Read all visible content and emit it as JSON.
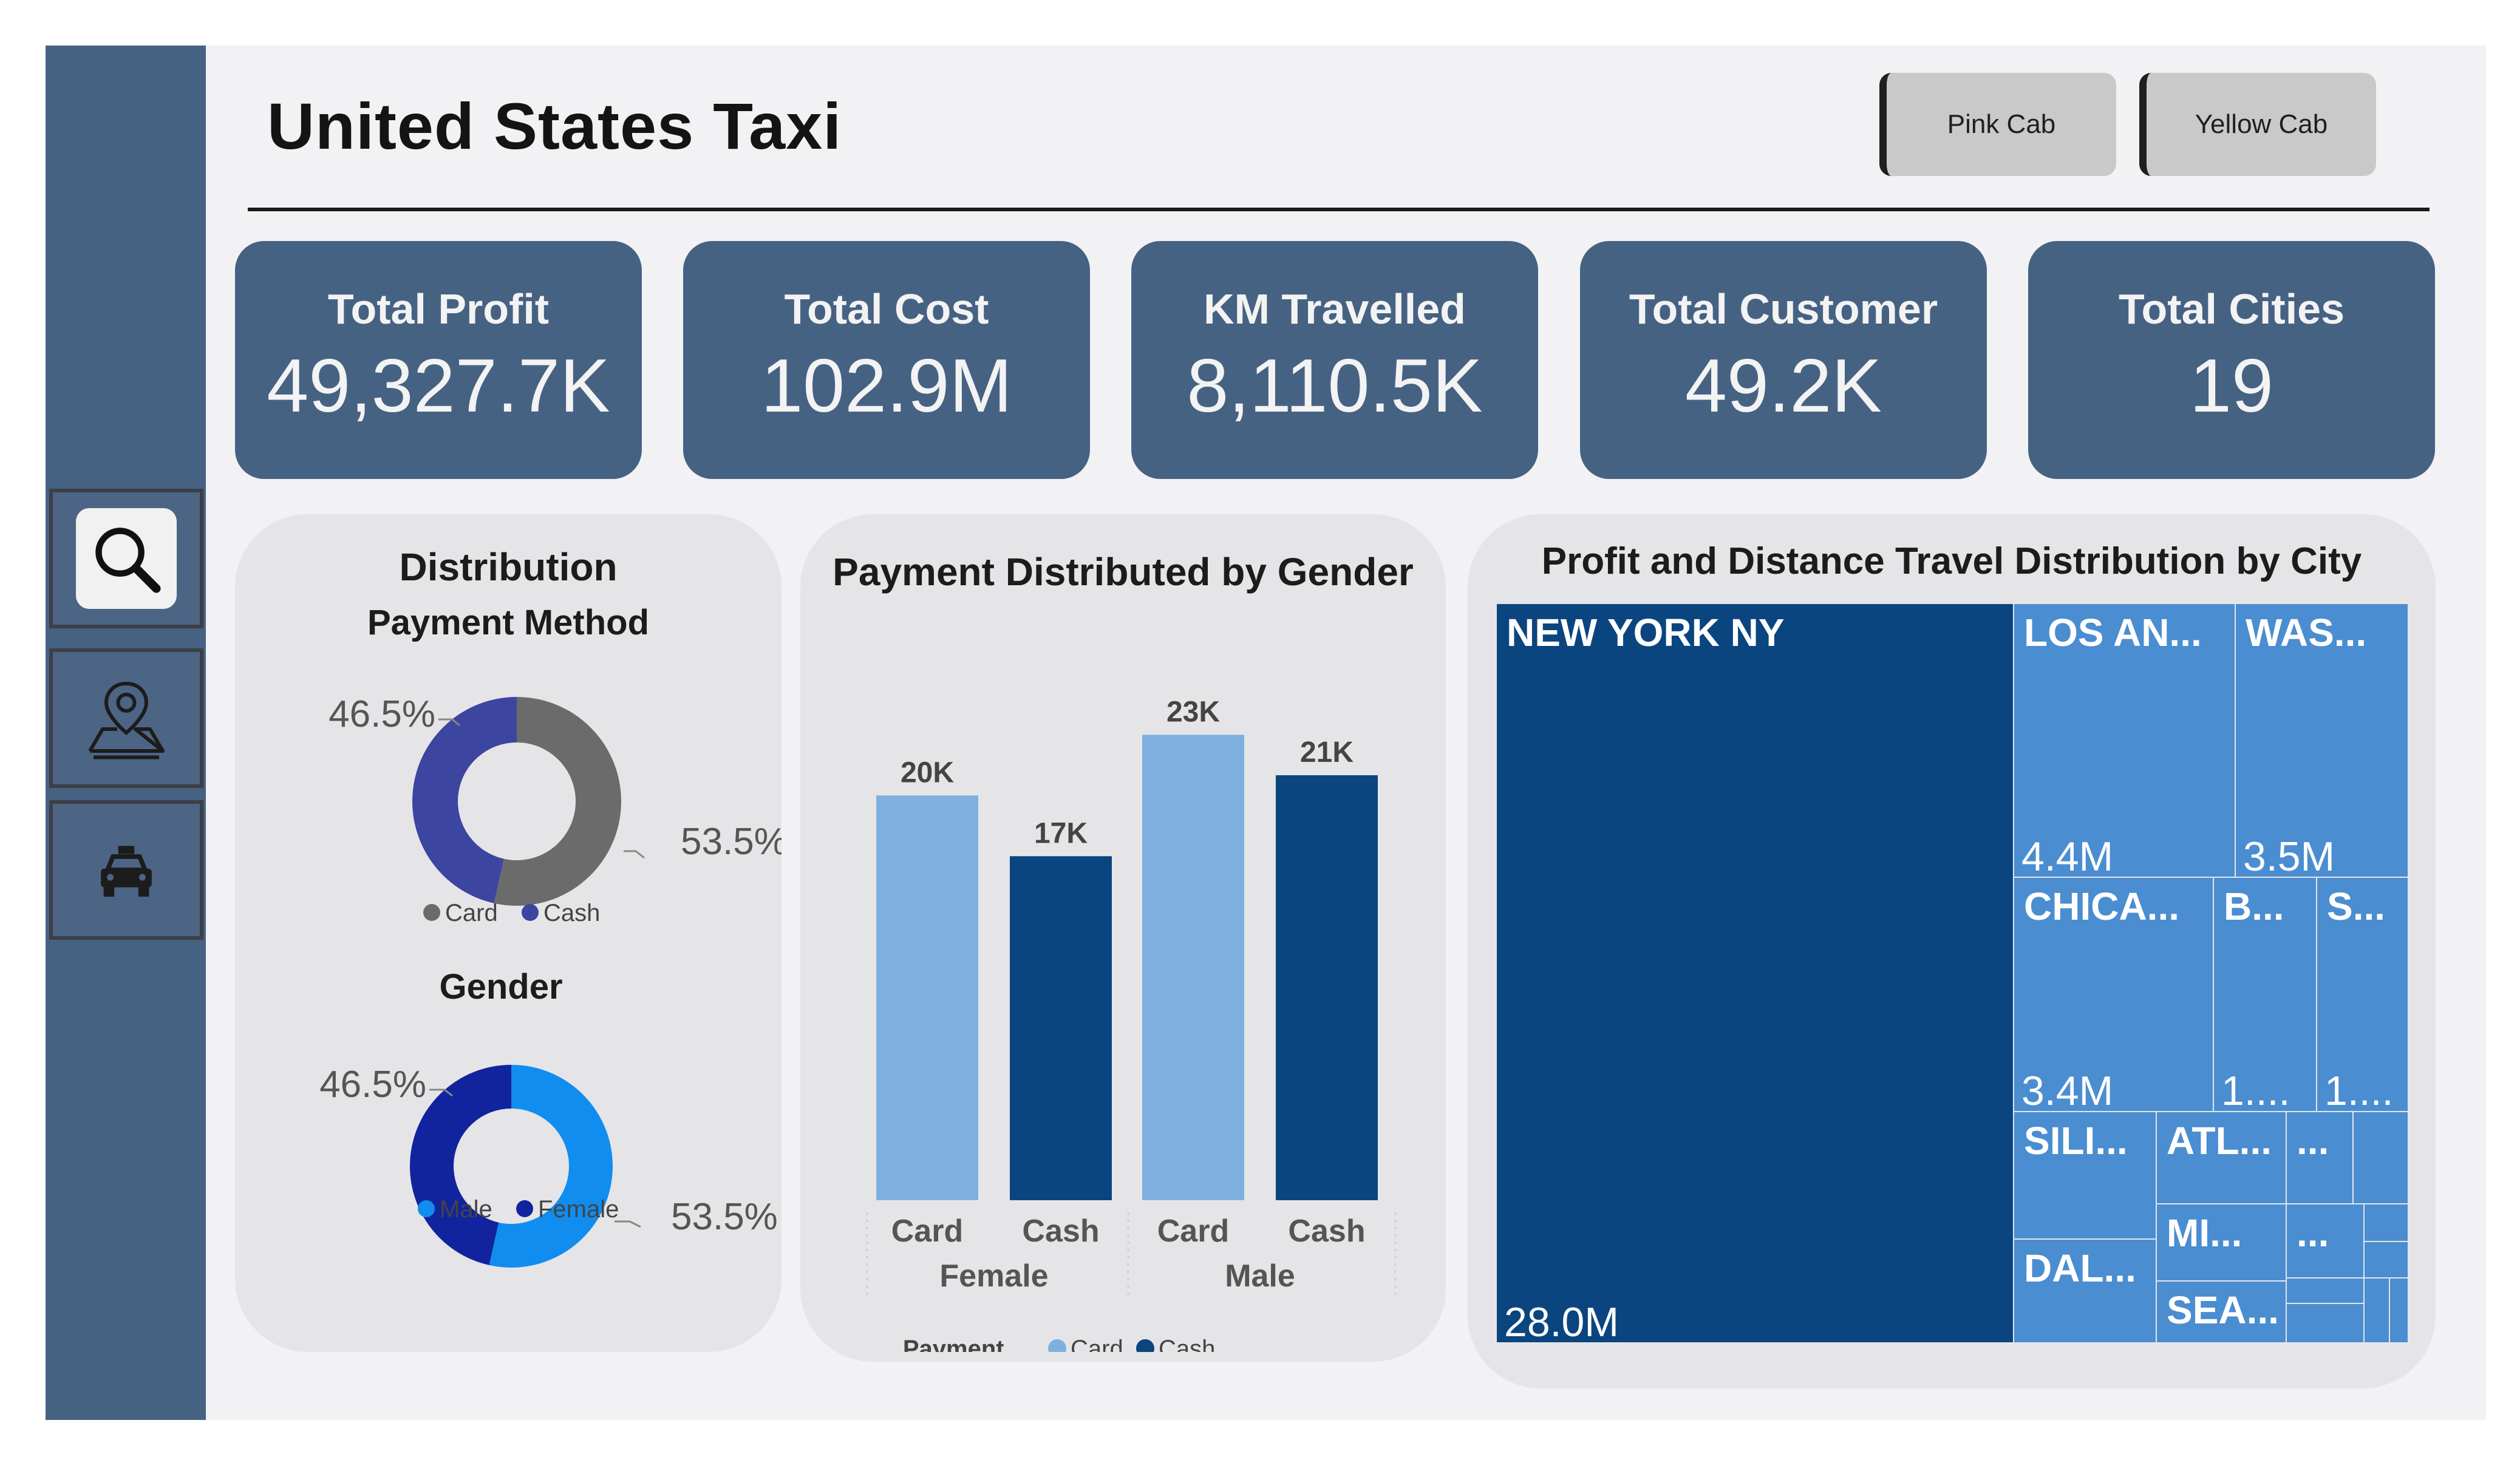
{
  "header": {
    "title": "United States Taxi",
    "buttons": [
      {
        "label": "Pink Cab"
      },
      {
        "label": "Yellow Cab"
      }
    ]
  },
  "sidebar": {
    "items": [
      {
        "icon": "search-icon",
        "active": true
      },
      {
        "icon": "map-pin-icon",
        "active": false
      },
      {
        "icon": "taxi-icon",
        "active": false
      }
    ]
  },
  "kpis": [
    {
      "label": "Total Profit",
      "value": "49,327.7K"
    },
    {
      "label": "Total Cost",
      "value": "102.9M"
    },
    {
      "label": "KM Travelled",
      "value": "8,110.5K"
    },
    {
      "label": "Total Customer",
      "value": "49.2K"
    },
    {
      "label": "Total Cities",
      "value": "19"
    }
  ],
  "distribution": {
    "title": "Distribution",
    "payment_subtitle": "Payment Method",
    "gender_subtitle": "Gender"
  },
  "payment_chart_title": "Payment Distributed by Gender",
  "treemap_title": "Profit and Distance Travel Distribution by City",
  "colors": {
    "card_gray": "#6b6b6b",
    "cash_indigo": "#3c45a0",
    "male_blue": "#118df0",
    "female_navy": "#12239e",
    "bar_card": "#7eb0df",
    "bar_cash": "#0a4580",
    "treemap_dark": "#0a4580",
    "treemap_light": "#4a8dd1"
  },
  "chart_data": [
    {
      "type": "pie",
      "subtitle": "Payment Method",
      "slices": [
        {
          "label": "Card",
          "value": 53.5,
          "display": "53.5%",
          "color": "#6b6b6b"
        },
        {
          "label": "Cash",
          "value": 46.5,
          "display": "46.5%",
          "color": "#3c45a0"
        }
      ],
      "legend": [
        "Card",
        "Cash"
      ],
      "legend_position": "bottom"
    },
    {
      "type": "pie",
      "subtitle": "Gender",
      "slices": [
        {
          "label": "Male",
          "value": 53.5,
          "display": "53.5%",
          "color": "#118df0"
        },
        {
          "label": "Female",
          "value": 46.5,
          "display": "46.5%",
          "color": "#12239e"
        }
      ],
      "legend": [
        "Male",
        "Female"
      ],
      "legend_position": "bottom"
    },
    {
      "type": "bar",
      "title": "Payment Distributed by Gender",
      "groups": [
        "Female",
        "Male"
      ],
      "categories": [
        "Card",
        "Cash",
        "Card",
        "Cash"
      ],
      "values": [
        20000,
        17000,
        23000,
        21000
      ],
      "data_labels": [
        "20K",
        "17K",
        "23K",
        "21K"
      ],
      "legend_title": "Payment_...",
      "legend": [
        "Card",
        "Cash"
      ],
      "legend_position": "bottom",
      "ylim": [
        0,
        24000
      ],
      "grid": false
    },
    {
      "type": "treemap",
      "title": "Profit and Distance Travel Distribution by City",
      "items": [
        {
          "label": "NEW YORK NY",
          "value_display": "28.0M",
          "value": 28.0
        },
        {
          "label": "LOS AN...",
          "value_display": "4.4M",
          "value": 4.4
        },
        {
          "label": "WAS...",
          "value_display": "3.5M",
          "value": 3.5
        },
        {
          "label": "CHICA...",
          "value_display": "3.4M",
          "value": 3.4
        },
        {
          "label": "B...",
          "value_display": "1...."
        },
        {
          "label": "S...",
          "value_display": "1...."
        },
        {
          "label": "SILI..."
        },
        {
          "label": "ATL..."
        },
        {
          "label": "..."
        },
        {
          "label": "DAL..."
        },
        {
          "label": "MI..."
        },
        {
          "label": "..."
        },
        {
          "label": "SEA..."
        }
      ]
    }
  ]
}
